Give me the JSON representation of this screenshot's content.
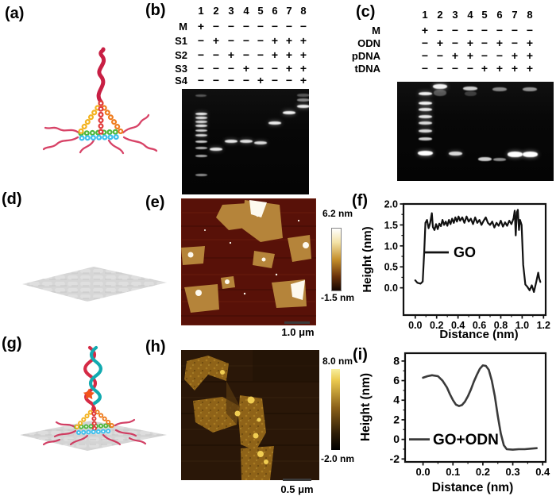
{
  "figure": {
    "panels": {
      "a": {
        "label": "(a)"
      },
      "b": {
        "label": "(b)",
        "lane_numbers": [
          "1",
          "2",
          "3",
          "4",
          "5",
          "6",
          "7",
          "8"
        ],
        "rows": [
          {
            "label": "M",
            "values": [
              "+",
              "−",
              "−",
              "−",
              "−",
              "−",
              "−",
              "−"
            ]
          },
          {
            "label": "S1",
            "values": [
              "−",
              "+",
              "−",
              "−",
              "−",
              "+",
              "+",
              "+"
            ]
          },
          {
            "label": "S2",
            "values": [
              "−",
              "−",
              "+",
              "−",
              "−",
              "+",
              "+",
              "+"
            ]
          },
          {
            "label": "S3",
            "values": [
              "−",
              "−",
              "−",
              "+",
              "−",
              "−",
              "+",
              "+"
            ]
          },
          {
            "label": "S4",
            "values": [
              "−",
              "−",
              "−",
              "−",
              "+",
              "−",
              "−",
              "+"
            ]
          }
        ]
      },
      "c": {
        "label": "(c)",
        "lane_numbers": [
          "1",
          "2",
          "3",
          "4",
          "5",
          "6",
          "7",
          "8"
        ],
        "rows": [
          {
            "label": "M",
            "values": [
              "+",
              "−",
              "−",
              "−",
              "−",
              "−",
              "−",
              "−"
            ]
          },
          {
            "label": "ODN",
            "values": [
              "−",
              "+",
              "−",
              "+",
              "−",
              "+",
              "−",
              "+"
            ]
          },
          {
            "label": "pDNA",
            "values": [
              "−",
              "−",
              "+",
              "+",
              "−",
              "−",
              "+",
              "+"
            ]
          },
          {
            "label": "tDNA",
            "values": [
              "−",
              "−",
              "−",
              "−",
              "+",
              "+",
              "+",
              "+"
            ]
          }
        ]
      },
      "d": {
        "label": "(d)"
      },
      "e": {
        "label": "(e)",
        "colorbar_max": "6.2 nm",
        "colorbar_min": "-1.5 nm",
        "scalebar": "1.0 μm"
      },
      "f": {
        "label": "(f)"
      },
      "g": {
        "label": "(g)"
      },
      "h": {
        "label": "(h)",
        "colorbar_max": "8.0 nm",
        "colorbar_min": "-2.0 nm",
        "scalebar": "0.5 μm"
      },
      "i": {
        "label": "(i)"
      }
    },
    "gels": {
      "b_bands": [
        {
          "l": 0,
          "y": 8,
          "i": 0.3,
          "w": 14,
          "h": 3
        },
        {
          "l": 0,
          "y": 31,
          "i": 0.95,
          "w": 15,
          "h": 3
        },
        {
          "l": 0,
          "y": 36,
          "i": 0.9,
          "w": 15,
          "h": 3
        },
        {
          "l": 0,
          "y": 41,
          "i": 0.85,
          "w": 15,
          "h": 3
        },
        {
          "l": 0,
          "y": 46,
          "i": 0.9,
          "w": 15,
          "h": 3
        },
        {
          "l": 0,
          "y": 52,
          "i": 0.8,
          "w": 15,
          "h": 3
        },
        {
          "l": 0,
          "y": 58,
          "i": 0.85,
          "w": 15,
          "h": 3
        },
        {
          "l": 0,
          "y": 66,
          "i": 0.8,
          "w": 15,
          "h": 3
        },
        {
          "l": 0,
          "y": 74,
          "i": 0.7,
          "w": 15,
          "h": 3
        },
        {
          "l": 0,
          "y": 84,
          "i": 0.65,
          "w": 15,
          "h": 3
        },
        {
          "l": 0,
          "y": 108,
          "i": 0.55,
          "w": 15,
          "h": 3
        },
        {
          "l": 1,
          "y": 76,
          "i": 0.9
        },
        {
          "l": 2,
          "y": 66,
          "i": 0.9
        },
        {
          "l": 3,
          "y": 66,
          "i": 0.88
        },
        {
          "l": 4,
          "y": 68,
          "i": 0.85
        },
        {
          "l": 5,
          "y": 43,
          "i": 0.92
        },
        {
          "l": 6,
          "y": 30,
          "i": 0.95
        },
        {
          "l": 7,
          "y": 22,
          "i": 0.92
        },
        {
          "l": 7,
          "y": 14,
          "i": 0.5
        },
        {
          "l": 7,
          "y": 8,
          "i": 0.3
        }
      ],
      "c_bands": [
        {
          "l": 0,
          "y": 15,
          "i": 0.95
        },
        {
          "l": 0,
          "y": 27,
          "i": 0.95
        },
        {
          "l": 0,
          "y": 35,
          "i": 0.9
        },
        {
          "l": 0,
          "y": 44,
          "i": 0.9
        },
        {
          "l": 0,
          "y": 52,
          "i": 0.85
        },
        {
          "l": 0,
          "y": 62,
          "i": 0.85
        },
        {
          "l": 0,
          "y": 72,
          "i": 0.8
        },
        {
          "l": 0,
          "y": 90,
          "i": 1,
          "w": 19,
          "h": 6
        },
        {
          "l": 1,
          "y": 6,
          "i": 0.95,
          "w": 18,
          "h": 6
        },
        {
          "l": 1,
          "y": 14,
          "i": 0.3,
          "w": 16,
          "h": 8
        },
        {
          "l": 3,
          "y": 8,
          "i": 0.8,
          "w": 18,
          "h": 5
        },
        {
          "l": 3,
          "y": 15,
          "i": 0.2,
          "w": 15,
          "h": 6
        },
        {
          "l": 5,
          "y": 9,
          "i": 0.5,
          "w": 18,
          "h": 5
        },
        {
          "l": 7,
          "y": 9,
          "i": 0.55,
          "w": 18,
          "h": 5
        },
        {
          "l": 2,
          "y": 90,
          "i": 0.85,
          "w": 17,
          "h": 5
        },
        {
          "l": 4,
          "y": 97,
          "i": 0.8,
          "w": 17,
          "h": 5
        },
        {
          "l": 5,
          "y": 98,
          "i": 0.55,
          "w": 16,
          "h": 4
        },
        {
          "l": 6,
          "y": 91,
          "i": 1,
          "w": 19,
          "h": 7
        },
        {
          "l": 7,
          "y": 91,
          "i": 1,
          "w": 19,
          "h": 7
        }
      ]
    },
    "colors": {
      "afm_go_bg": "#581108",
      "afm_go_flake": "#b5843a",
      "afm_go_bright": "#fdf9ee",
      "afm_goodn_bg": "#2a1708",
      "afm_goodn_flake": "#8f6318",
      "afm_goodn_bright": "#f0cd52",
      "colorbar_go_stops": [
        "#ffffff 0%",
        "#f4e3a8 22%",
        "#c48f2c 50%",
        "#68300a 78%",
        "#140500 100%"
      ],
      "colorbar_goodn_stops": [
        "#f8ef9e 0%",
        "#eac94e 14%",
        "#8a5f18 48%",
        "#2c1c06 80%",
        "#000000 100%"
      ],
      "gel_bg": "#070707",
      "trace_go": "#111111",
      "trace_goodn": "#3a3a3a",
      "star": "#f2541c",
      "helix_red": "#d52a45",
      "helix_teal": "#12aab0"
    }
  },
  "chart_data": [
    {
      "id": "chart-f",
      "type": "line",
      "title": "",
      "xlabel": "Distance (nm)",
      "ylabel": "Height (nm)",
      "xlim": [
        -0.11,
        1.22
      ],
      "ylim": [
        -0.65,
        2.0
      ],
      "xticks": [
        "0.0",
        "0.2",
        "0.4",
        "0.6",
        "0.8",
        "1.0",
        "1.2"
      ],
      "yticks": [
        "0.0",
        "0.5",
        "1.0",
        "1.5",
        "2.0"
      ],
      "grid": false,
      "legend": "GO",
      "series": [
        {
          "name": "GO",
          "color": "#111111",
          "points": [
            [
              0.0,
              0.18
            ],
            [
              0.02,
              0.12
            ],
            [
              0.05,
              0.1
            ],
            [
              0.07,
              0.15
            ],
            [
              0.085,
              0.9
            ],
            [
              0.095,
              1.55
            ],
            [
              0.11,
              1.62
            ],
            [
              0.125,
              1.42
            ],
            [
              0.14,
              1.55
            ],
            [
              0.155,
              1.78
            ],
            [
              0.165,
              1.45
            ],
            [
              0.18,
              1.38
            ],
            [
              0.195,
              1.52
            ],
            [
              0.21,
              1.4
            ],
            [
              0.225,
              1.53
            ],
            [
              0.24,
              1.47
            ],
            [
              0.255,
              1.62
            ],
            [
              0.27,
              1.5
            ],
            [
              0.285,
              1.58
            ],
            [
              0.3,
              1.48
            ],
            [
              0.315,
              1.62
            ],
            [
              0.33,
              1.52
            ],
            [
              0.345,
              1.65
            ],
            [
              0.36,
              1.55
            ],
            [
              0.375,
              1.68
            ],
            [
              0.39,
              1.58
            ],
            [
              0.405,
              1.7
            ],
            [
              0.42,
              1.6
            ],
            [
              0.44,
              1.68
            ],
            [
              0.46,
              1.55
            ],
            [
              0.48,
              1.7
            ],
            [
              0.5,
              1.58
            ],
            [
              0.52,
              1.65
            ],
            [
              0.54,
              1.52
            ],
            [
              0.56,
              1.68
            ],
            [
              0.58,
              1.55
            ],
            [
              0.6,
              1.62
            ],
            [
              0.62,
              1.5
            ],
            [
              0.64,
              1.6
            ],
            [
              0.66,
              1.68
            ],
            [
              0.68,
              1.55
            ],
            [
              0.7,
              1.5
            ],
            [
              0.72,
              1.58
            ],
            [
              0.74,
              1.44
            ],
            [
              0.76,
              1.55
            ],
            [
              0.78,
              1.48
            ],
            [
              0.8,
              1.6
            ],
            [
              0.82,
              1.46
            ],
            [
              0.84,
              1.56
            ],
            [
              0.86,
              1.48
            ],
            [
              0.88,
              1.6
            ],
            [
              0.9,
              1.52
            ],
            [
              0.92,
              1.66
            ],
            [
              0.93,
              1.84
            ],
            [
              0.94,
              1.25
            ],
            [
              0.95,
              1.8
            ],
            [
              0.96,
              1.86
            ],
            [
              0.97,
              1.38
            ],
            [
              0.98,
              1.62
            ],
            [
              0.995,
              1.5
            ],
            [
              1.01,
              0.55
            ],
            [
              1.03,
              0.08
            ],
            [
              1.05,
              0.02
            ],
            [
              1.07,
              -0.06
            ],
            [
              1.09,
              0.06
            ],
            [
              1.11,
              -0.1
            ],
            [
              1.13,
              0.12
            ],
            [
              1.15,
              0.36
            ],
            [
              1.16,
              0.22
            ],
            [
              1.17,
              0.14
            ]
          ]
        }
      ]
    },
    {
      "id": "chart-i",
      "type": "line",
      "title": "",
      "xlabel": "Distance (nm)",
      "ylabel": "Height (nm)",
      "xlim": [
        -0.06,
        0.41
      ],
      "ylim": [
        -2.3,
        8.8
      ],
      "xticks": [
        "0.0",
        "0.1",
        "0.2",
        "0.3",
        "0.4"
      ],
      "yticks": [
        "-2",
        "0",
        "2",
        "4",
        "6",
        "8"
      ],
      "grid": false,
      "legend": "GO+ODN",
      "series": [
        {
          "name": "GO+ODN",
          "color": "#3a3a3a",
          "points": [
            [
              0.0,
              6.3
            ],
            [
              0.015,
              6.45
            ],
            [
              0.03,
              6.55
            ],
            [
              0.05,
              6.45
            ],
            [
              0.065,
              6.0
            ],
            [
              0.08,
              5.3
            ],
            [
              0.09,
              4.6
            ],
            [
              0.1,
              4.0
            ],
            [
              0.11,
              3.55
            ],
            [
              0.12,
              3.4
            ],
            [
              0.13,
              3.5
            ],
            [
              0.14,
              3.85
            ],
            [
              0.15,
              4.4
            ],
            [
              0.16,
              5.1
            ],
            [
              0.17,
              5.9
            ],
            [
              0.18,
              6.6
            ],
            [
              0.19,
              7.2
            ],
            [
              0.2,
              7.55
            ],
            [
              0.21,
              7.5
            ],
            [
              0.22,
              7.1
            ],
            [
              0.23,
              6.0
            ],
            [
              0.24,
              4.4
            ],
            [
              0.25,
              2.4
            ],
            [
              0.26,
              0.6
            ],
            [
              0.27,
              -0.6
            ],
            [
              0.28,
              -1.0
            ],
            [
              0.3,
              -1.05
            ],
            [
              0.32,
              -1.0
            ],
            [
              0.34,
              -1.0
            ],
            [
              0.36,
              -0.95
            ],
            [
              0.38,
              -0.9
            ]
          ]
        }
      ]
    }
  ]
}
